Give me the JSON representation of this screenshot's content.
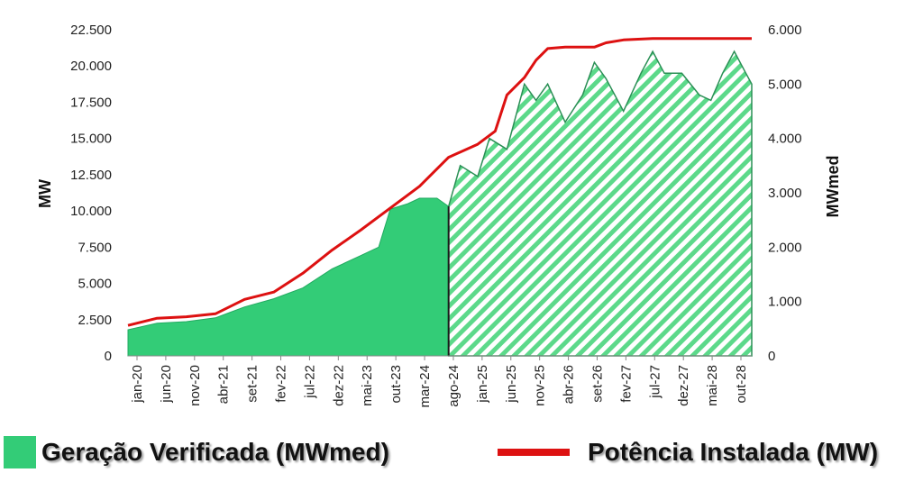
{
  "chart_data": {
    "type": "area",
    "x_ticks": [
      "jan-20",
      "jun-20",
      "nov-20",
      "abr-21",
      "set-21",
      "fev-22",
      "jul-22",
      "dez-22",
      "mai-23",
      "out-23",
      "mar-24",
      "ago-24",
      "jan-25",
      "jun-25",
      "nov-25",
      "abr-26",
      "set-26",
      "fev-27",
      "jul-27",
      "dez-27",
      "mai-28",
      "out-28"
    ],
    "x_range": [
      "2020-01",
      "2028-12"
    ],
    "observed_until": "2024-08",
    "ylabel_left": "MW",
    "ylabel_right": "MWmed",
    "ylim_left": [
      0,
      22500
    ],
    "ylim_right": [
      0,
      6000
    ],
    "y_ticks_left": [
      "0",
      "2.500",
      "5.000",
      "7.500",
      "10.000",
      "12.500",
      "15.000",
      "17.500",
      "20.000",
      "22.500"
    ],
    "y_ticks_right": [
      "0",
      "1.000",
      "2.000",
      "3.000",
      "4.000",
      "5.000",
      "6.000"
    ],
    "grid": false,
    "legend_position": "bottom",
    "series": [
      {
        "name": "Geração Verificada (MWmed)",
        "axis": "right",
        "color": "#33cc77",
        "style_observed": "solid",
        "style_forecast": "hatched",
        "x": [
          "2020-01",
          "2020-06",
          "2020-11",
          "2021-04",
          "2021-09",
          "2022-02",
          "2022-07",
          "2022-12",
          "2023-05",
          "2023-08",
          "2023-10",
          "2024-01",
          "2024-03",
          "2024-06",
          "2024-08",
          "2024-10",
          "2025-01",
          "2025-03",
          "2025-06",
          "2025-09",
          "2025-11",
          "2026-01",
          "2026-04",
          "2026-07",
          "2026-09",
          "2026-11",
          "2027-02",
          "2027-05",
          "2027-07",
          "2027-09",
          "2027-12",
          "2028-03",
          "2028-05",
          "2028-07",
          "2028-09",
          "2028-11",
          "2028-12"
        ],
        "values": [
          480,
          600,
          630,
          700,
          900,
          1050,
          1250,
          1600,
          1850,
          2000,
          2700,
          2800,
          2900,
          2900,
          2750,
          3500,
          3300,
          4000,
          3800,
          5000,
          4700,
          5000,
          4300,
          4800,
          5400,
          5100,
          4500,
          5200,
          5600,
          5200,
          5200,
          4800,
          4700,
          5200,
          5600,
          5200,
          5000
        ]
      },
      {
        "name": "Potência Instalada (MW)",
        "axis": "left",
        "color": "#dd1111",
        "x": [
          "2020-01",
          "2020-06",
          "2020-11",
          "2021-04",
          "2021-09",
          "2022-02",
          "2022-07",
          "2022-12",
          "2023-05",
          "2023-10",
          "2024-03",
          "2024-08",
          "2025-01",
          "2025-04",
          "2025-06",
          "2025-09",
          "2025-11",
          "2026-01",
          "2026-04",
          "2026-09",
          "2026-11",
          "2027-02",
          "2027-07",
          "2028-01",
          "2028-06",
          "2028-12"
        ],
        "values": [
          2100,
          2600,
          2700,
          2900,
          3900,
          4400,
          5700,
          7300,
          8700,
          10200,
          11700,
          13700,
          14600,
          15500,
          18000,
          19200,
          20400,
          21200,
          21300,
          21300,
          21600,
          21800,
          21900,
          21900,
          21900,
          21900
        ]
      }
    ]
  }
}
